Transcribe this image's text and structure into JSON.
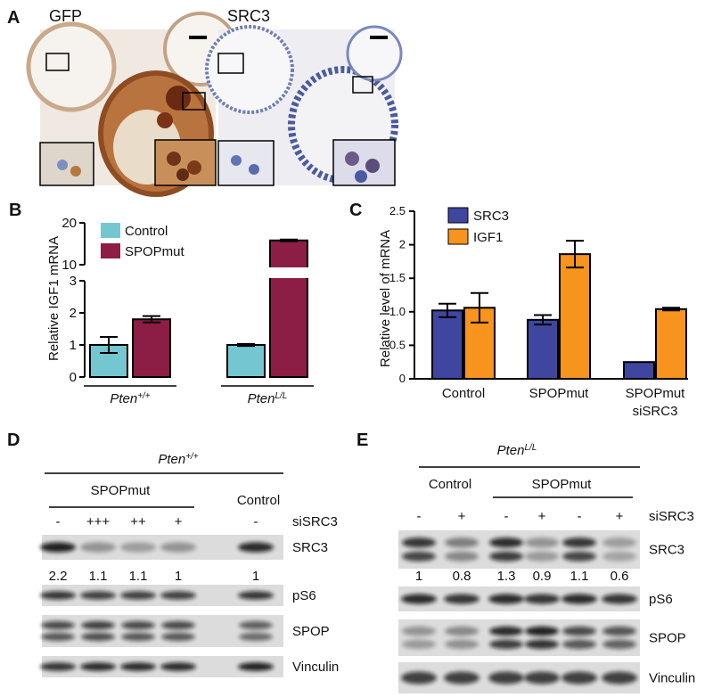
{
  "panel_a": {
    "label": "A",
    "images": [
      {
        "title": "GFP"
      },
      {
        "title": "SRC3"
      }
    ]
  },
  "chart_data": [
    {
      "panel_label": "B",
      "type": "bar",
      "y_label": "Relative IGF1 mRNA",
      "categories": [
        {
          "text": "Pten",
          "sup": "+/+"
        },
        {
          "text": "Pten",
          "sup": "L/L"
        }
      ],
      "series": [
        {
          "name": "Control",
          "color": "#74c7d0",
          "values": [
            1.0,
            1.0
          ],
          "errors": [
            0.25,
            0.03
          ]
        },
        {
          "name": "SPOPmut",
          "color": "#8c1d44",
          "values": [
            1.8,
            15.8
          ],
          "errors": [
            0.1,
            0.2
          ]
        }
      ],
      "ylim": [
        0,
        20
      ],
      "yticks": [
        0,
        1,
        2,
        3,
        10,
        20
      ],
      "axis_break": [
        3,
        10
      ]
    },
    {
      "panel_label": "C",
      "type": "bar",
      "y_label": "Relative level of mRNA",
      "categories": [
        "Control",
        "SPOPmut",
        "SPOPmut\nsiSRC3"
      ],
      "series": [
        {
          "name": "SRC3",
          "color": "#3e46a0",
          "values": [
            1.02,
            0.88,
            0.25
          ],
          "errors": [
            0.1,
            0.07,
            null
          ]
        },
        {
          "name": "IGF1",
          "color": "#f7941d",
          "values": [
            1.06,
            1.86,
            1.04
          ],
          "errors": [
            0.22,
            0.2,
            0.02
          ]
        }
      ],
      "ylim": [
        0,
        2.5
      ],
      "yticks": [
        0,
        0.5,
        {
          "value": 1,
          "label": "1.0"
        },
        1.5,
        2,
        2.5
      ]
    }
  ],
  "panel_d": {
    "label": "D",
    "genotype": {
      "text": "Pten",
      "sup": "+/+"
    },
    "group_labels": [
      "SPOPmut",
      "Control"
    ],
    "lanes": [
      "-",
      "+++",
      "++",
      "+",
      "-"
    ],
    "treatment": "siSRC3",
    "rows": [
      "SRC3",
      "pS6",
      "SPOP",
      "Vinculin"
    ],
    "quantification": [
      "2.2",
      "1.1",
      "1.1",
      "1",
      "1"
    ]
  },
  "panel_e": {
    "label": "E",
    "genotype": {
      "text": "Pten",
      "sup": "L/L"
    },
    "group_labels": [
      "Control",
      "SPOPmut"
    ],
    "lanes": [
      "-",
      "+",
      "-",
      "+",
      "-",
      "+"
    ],
    "treatment": "siSRC3",
    "rows": [
      "SRC3",
      "pS6",
      "SPOP",
      "Vinculin"
    ],
    "quantification": [
      "1",
      "0.8",
      "1.3",
      "0.9",
      "1.1",
      "0.6"
    ]
  }
}
